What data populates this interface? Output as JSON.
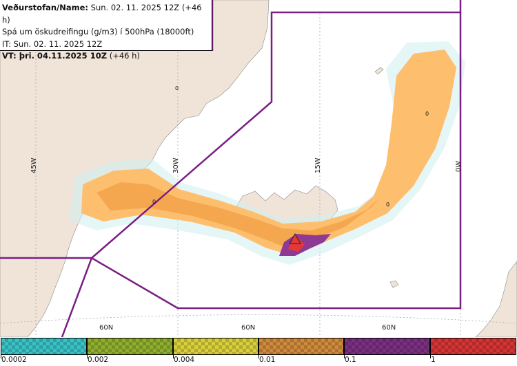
{
  "info": {
    "line1_label": "Veðurstofan/Name:",
    "line1_value": " Sun. 02. 11. 2025 12Z (+46 h)",
    "line2": "Spá um öskudreifingu (g/m3) í 500hPa (18000ft)",
    "line3": "IT: Sun. 02. 11. 2025 12Z",
    "line4_label": "VT: þri. 04.11.2025 10Z",
    "line4_value": " (+46 h)"
  },
  "map_labels": {
    "lon_45w": "45W",
    "lon_30w": "30W",
    "lon_15w": "15W",
    "lon_0w": "0W",
    "lat_60n_left": "60N",
    "lat_60n_mid": "60N",
    "lat_60n_right": "60N",
    "marker_0_a": "0",
    "marker_0_b": "0",
    "marker_0_c": "0",
    "marker_0_d": "0"
  },
  "colors": {
    "land": "#f0e4d9",
    "sea": "#ffffff",
    "boundary": "#7a1f82",
    "grid": "#a9a9a9",
    "ash_light_orange": "#fdbf6e",
    "ash_orange": "#f2a24a",
    "ash_purple": "#8e3a95",
    "ash_red": "#e23838"
  },
  "legend": {
    "swatches": [
      {
        "name": "cyan",
        "color": "#39c2c6"
      },
      {
        "name": "olive-green",
        "color": "#8fae2d"
      },
      {
        "name": "yellow",
        "color": "#d9cf3a"
      },
      {
        "name": "orange",
        "color": "#cf8a3b"
      },
      {
        "name": "purple",
        "color": "#7a2f80"
      },
      {
        "name": "red",
        "color": "#d53434"
      }
    ],
    "ticks": [
      "0.0002",
      "0.002",
      "0.004",
      "0.01",
      "0.1",
      "1"
    ]
  }
}
